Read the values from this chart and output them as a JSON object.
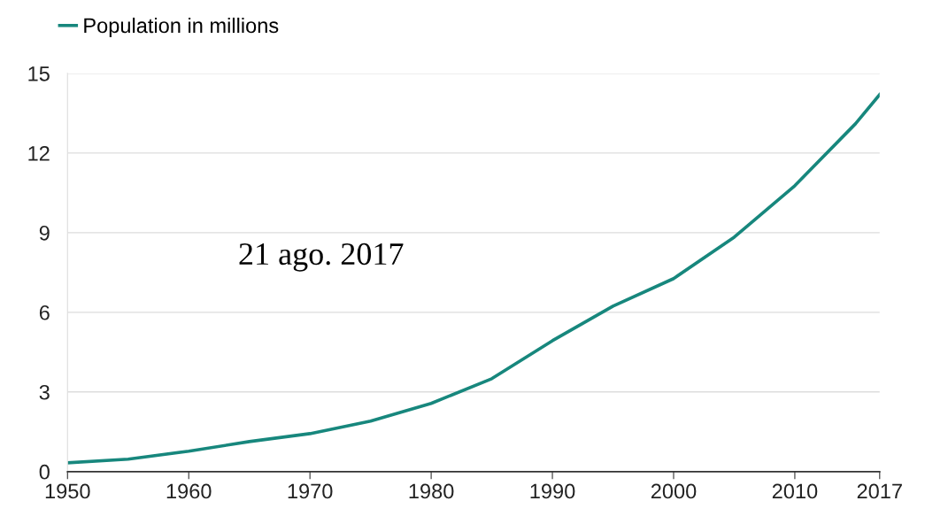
{
  "chart_data": {
    "type": "line",
    "x": [
      1950,
      1955,
      1960,
      1965,
      1970,
      1975,
      1980,
      1985,
      1990,
      1995,
      2000,
      2005,
      2010,
      2015,
      2017
    ],
    "series": [
      {
        "name": "Population in millions",
        "color": "#17877d",
        "values": [
          0.33,
          0.47,
          0.77,
          1.13,
          1.43,
          1.9,
          2.57,
          3.5,
          4.93,
          6.23,
          7.27,
          8.83,
          10.77,
          13.1,
          14.2
        ]
      }
    ],
    "xlim": [
      1950,
      2017
    ],
    "xticks": [
      1950,
      1960,
      1970,
      1980,
      1990,
      2000,
      2010,
      2017
    ],
    "ylim": [
      0,
      15
    ],
    "yticks": [
      0,
      3,
      6,
      9,
      12,
      15
    ],
    "grid": "y",
    "legend": "top left",
    "marker": "none",
    "line_style": "solid",
    "annotations": [
      "21 ago. 2017"
    ]
  }
}
